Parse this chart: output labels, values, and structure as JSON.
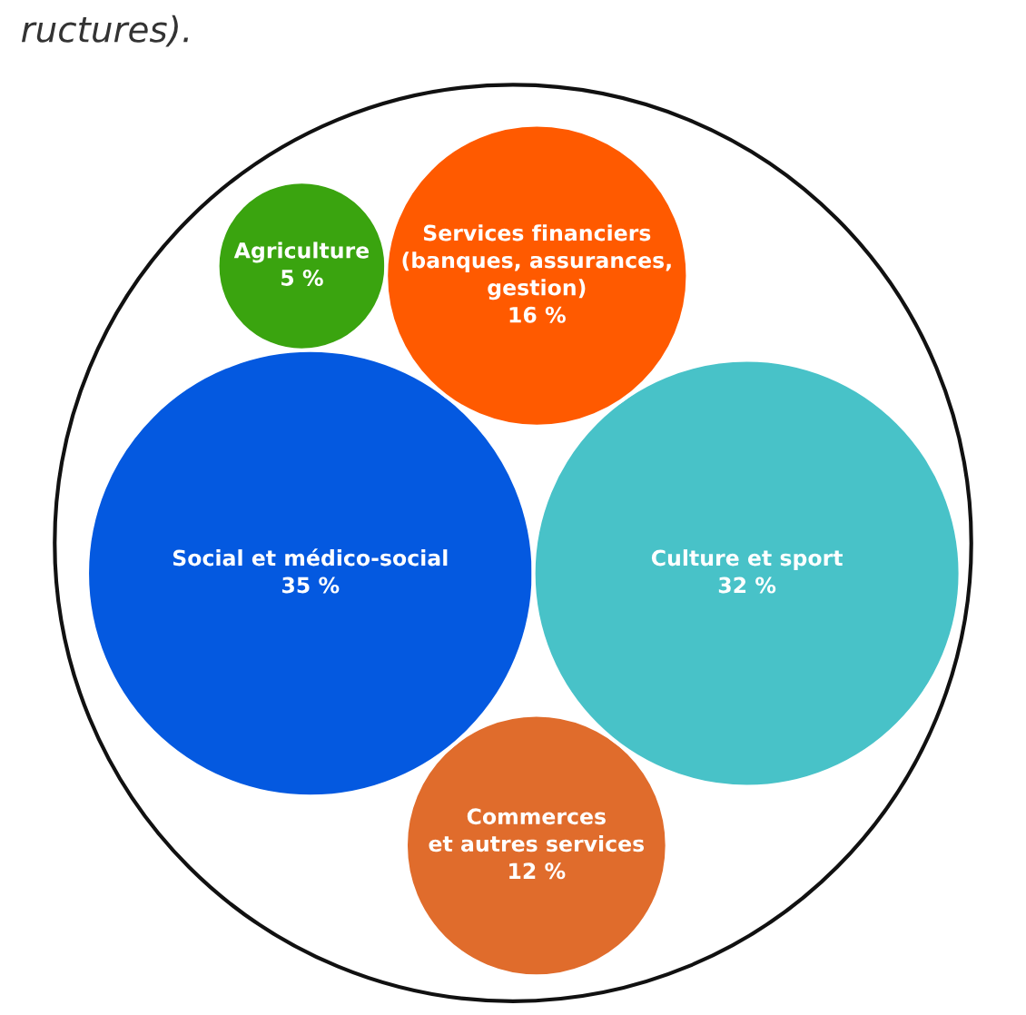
{
  "chart_data": {
    "type": "other",
    "title": "ructures).",
    "categories": [
      "Agriculture",
      "Commerces\net autres services",
      "Social et médico-social",
      "Culture et sport",
      "Services financiers\n(banques, assurances,\ngestion)"
    ],
    "values": [
      5,
      12,
      35,
      32,
      16
    ],
    "value_labels": [
      "5 %",
      "12 %",
      "35 %",
      "32 %",
      "16 %"
    ],
    "colors": [
      "#3aa40f",
      "#e06c2c",
      "#0459e0",
      "#48c2c8",
      "#ff5a00"
    ]
  }
}
